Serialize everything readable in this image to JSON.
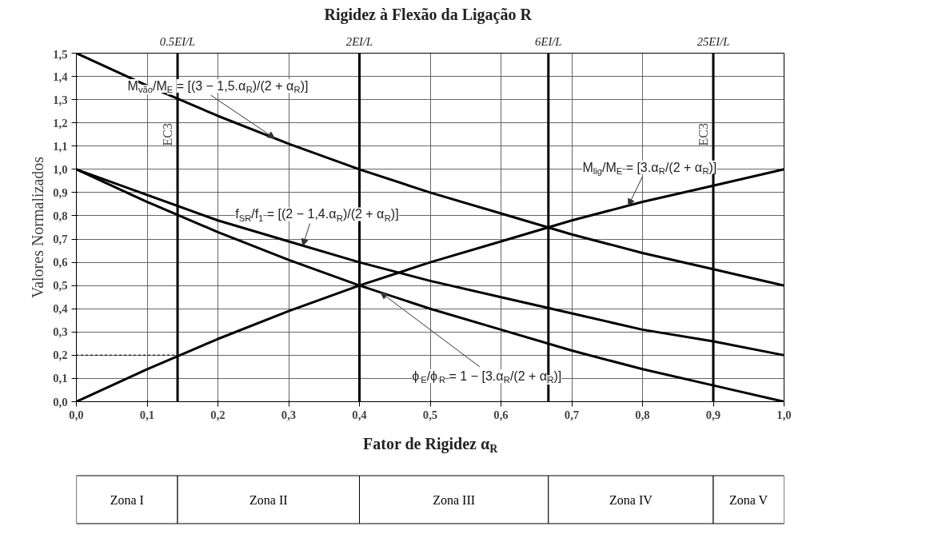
{
  "chart_data": {
    "type": "line",
    "title": "Rigidez à Flexão da Ligação R",
    "xlabel": "Fator de Rigidez α$_{R}$",
    "ylabel": "Valores Normalizados",
    "x": [
      0,
      0.1,
      0.2,
      0.3,
      0.4,
      0.5,
      0.6,
      0.7,
      0.8,
      0.9,
      1.0
    ],
    "series": [
      {
        "color": "#000000",
        "values": [
          1.5,
          1.36,
          1.23,
          1.11,
          1.0,
          0.9,
          0.81,
          0.72,
          0.64,
          0.57,
          0.5
        ]
      },
      {
        "color": "#000000",
        "values": [
          0,
          0.14,
          0.27,
          0.39,
          0.5,
          0.6,
          0.69,
          0.78,
          0.86,
          0.93,
          1.0
        ]
      },
      {
        "color": "#000000",
        "values": [
          1.0,
          0.89,
          0.78,
          0.69,
          0.6,
          0.52,
          0.45,
          0.38,
          0.31,
          0.26,
          0.2
        ]
      },
      {
        "color": "#000000",
        "values": [
          1.0,
          0.86,
          0.73,
          0.61,
          0.5,
          0.4,
          0.31,
          0.22,
          0.14,
          0.07,
          0
        ]
      },
      {
        "color": "#000000",
        "x": [
          0,
          0.143
        ],
        "values": [
          0.2,
          0.2
        ],
        "line_style": "dotted"
      }
    ],
    "line_style": "solid",
    "marker": "none",
    "grid": true,
    "xlim": [
      0,
      1
    ],
    "ylim": [
      0,
      1.5
    ],
    "xticks": [
      {
        "value": 0,
        "label": "0,0"
      },
      {
        "value": 0.1,
        "label": "0,1"
      },
      {
        "value": 0.2,
        "label": "0,2"
      },
      {
        "value": 0.3,
        "label": "0,3"
      },
      {
        "value": 0.4,
        "label": "0,4"
      },
      {
        "value": 0.5,
        "label": "0,5"
      },
      {
        "value": 0.6,
        "label": "0,6"
      },
      {
        "value": 0.7,
        "label": "0,7"
      },
      {
        "value": 0.8,
        "label": "0,8"
      },
      {
        "value": 0.9,
        "label": "0,9"
      },
      {
        "value": 1.0,
        "label": "1,0"
      }
    ],
    "yticks": [
      {
        "value": 0,
        "label": "0,0"
      },
      {
        "value": 0.1,
        "label": "0,1"
      },
      {
        "value": 0.2,
        "label": "0,2"
      },
      {
        "value": 0.3,
        "label": "0,3"
      },
      {
        "value": 0.4,
        "label": "0,4"
      },
      {
        "value": 0.5,
        "label": "0,5"
      },
      {
        "value": 0.6,
        "label": "0,6"
      },
      {
        "value": 0.7,
        "label": "0,7"
      },
      {
        "value": 0.8,
        "label": "0,8"
      },
      {
        "value": 0.9,
        "label": "0,9"
      },
      {
        "value": 1.0,
        "label": "1,0"
      },
      {
        "value": 1.1,
        "label": "1,1"
      },
      {
        "value": 1.2,
        "label": "1,2"
      },
      {
        "value": 1.3,
        "label": "1,3"
      },
      {
        "value": 1.4,
        "label": "1,4"
      },
      {
        "value": 1.5,
        "label": "1,5"
      }
    ],
    "ref_lines": [
      {
        "axis": "x",
        "value": 0.143,
        "label": "0.5EI/L"
      },
      {
        "axis": "x",
        "value": 0.4,
        "label": "2EI/L"
      },
      {
        "axis": "x",
        "value": 0.667,
        "label": "6EI/L"
      },
      {
        "axis": "x",
        "value": 0.9,
        "label": "25EI/L"
      }
    ],
    "annotations": [
      "M$_{vão}$/M$_{E}$ = [(3 − 1,5.α$_{R}$)/(2 + α$_{R}$)]",
      "M$_{lig}$/M$_{E}$ = [3.α$_{R}$/(2 + α$_{R}$)]",
      "f$_{SR}$/f$_{1}$ = [(2 − 1,4.α$_{R}$)/(2 + α$_{R}$)]",
      "ϕ$_{E}$/ϕ$_{R}$ = 1 − [3.α$_{R}$/(2 + α$_{R}$)]",
      "Zona I",
      "Zona II",
      "Zona III",
      "Zona IV",
      "Zona V",
      {
        "text": "EC3",
        "x": 0.143,
        "y": 1.15
      },
      {
        "text": "EC3",
        "x": 0.9,
        "y": 1.15
      }
    ]
  }
}
